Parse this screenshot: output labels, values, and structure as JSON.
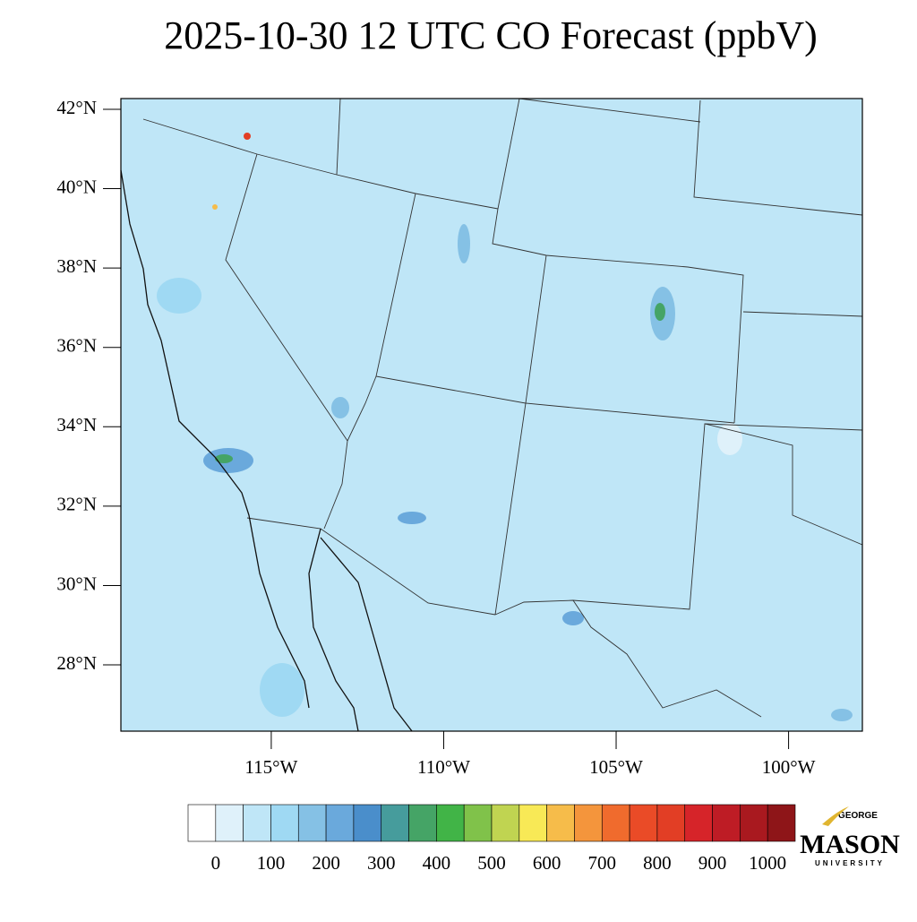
{
  "title": "2025-10-30 12 UTC CO Forecast (ppbV)",
  "map": {
    "latlim": [
      26.33,
      42.27
    ],
    "lonlim": [
      -119.36,
      -97.86
    ],
    "lat_ticks": [
      {
        "value": 42,
        "label": "42°N"
      },
      {
        "value": 40,
        "label": "40°N"
      },
      {
        "value": 38,
        "label": "38°N"
      },
      {
        "value": 36,
        "label": "36°N"
      },
      {
        "value": 34,
        "label": "34°N"
      },
      {
        "value": 32,
        "label": "32°N"
      },
      {
        "value": 30,
        "label": "30°N"
      },
      {
        "value": 28,
        "label": "28°N"
      }
    ],
    "lon_ticks": [
      {
        "value": -115,
        "label": "115°W"
      },
      {
        "value": -110,
        "label": "110°W"
      },
      {
        "value": -105,
        "label": "105°W"
      },
      {
        "value": -100,
        "label": "100°W"
      }
    ]
  },
  "colorbar": {
    "labels": [
      0,
      100,
      200,
      300,
      400,
      500,
      600,
      700,
      800,
      900,
      1000
    ],
    "colors": [
      "#ffffff",
      "#dff1fa",
      "#bfe6f7",
      "#9fd9f3",
      "#85c1e5",
      "#6aa9dc",
      "#4a8ecb",
      "#469c9c",
      "#45a466",
      "#41b447",
      "#80c24a",
      "#c0d451",
      "#f8e956",
      "#f6bc4a",
      "#f4953c",
      "#f06b2d",
      "#ea4b27",
      "#e23e25",
      "#d62429",
      "#be1c25",
      "#a9191f",
      "#8e1518"
    ]
  },
  "logo": {
    "top": "GEORGE",
    "main": "MASON",
    "bottom": "UNIVERSITY"
  }
}
